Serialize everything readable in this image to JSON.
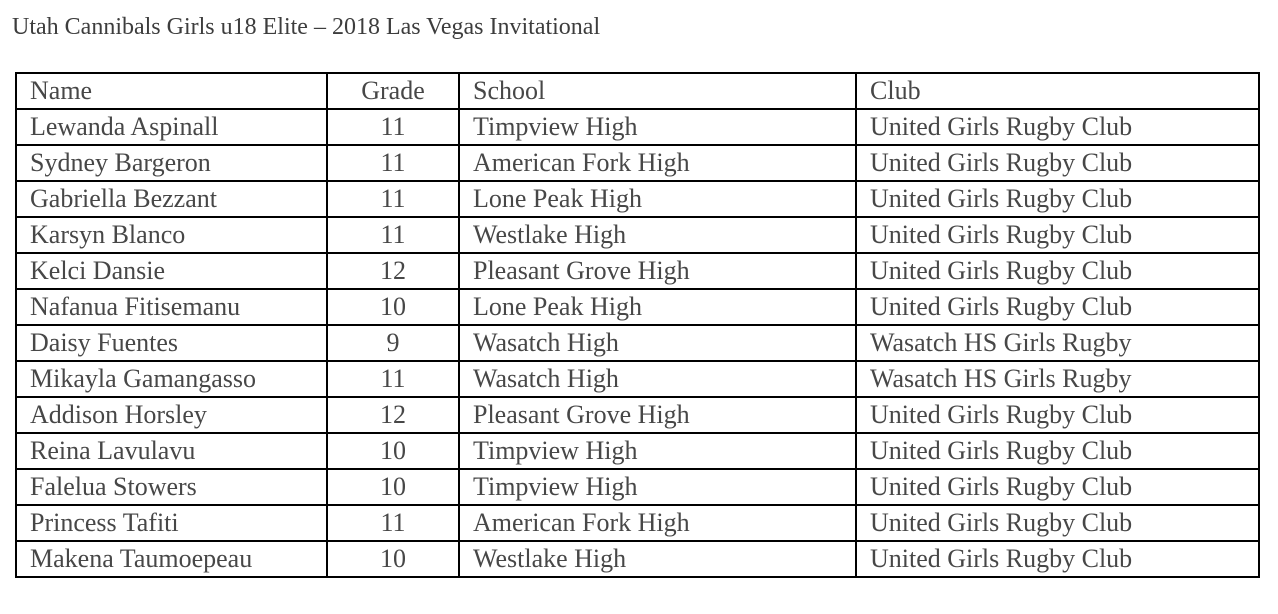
{
  "title": "Utah Cannibals Girls u18 Elite – 2018 Las Vegas Invitational",
  "table": {
    "headers": [
      "Name",
      "Grade",
      "School",
      "Club"
    ],
    "rows": [
      [
        "Lewanda Aspinall",
        "11",
        "Timpview High",
        "United Girls Rugby Club"
      ],
      [
        "Sydney Bargeron",
        "11",
        "American Fork High",
        "United Girls Rugby Club"
      ],
      [
        "Gabriella Bezzant",
        "11",
        "Lone Peak High",
        "United Girls Rugby Club"
      ],
      [
        "Karsyn Blanco",
        "11",
        "Westlake High",
        "United Girls Rugby Club"
      ],
      [
        "Kelci Dansie",
        "12",
        "Pleasant Grove High",
        "United Girls Rugby Club"
      ],
      [
        "Nafanua Fitisemanu",
        "10",
        "Lone Peak High",
        "United Girls Rugby Club"
      ],
      [
        "Daisy Fuentes",
        "9",
        "Wasatch High",
        "Wasatch HS Girls Rugby"
      ],
      [
        "Mikayla Gamangasso",
        "11",
        "Wasatch High",
        "Wasatch HS Girls Rugby"
      ],
      [
        "Addison Horsley",
        "12",
        "Pleasant Grove High",
        "United Girls Rugby Club"
      ],
      [
        "Reina Lavulavu",
        "10",
        "Timpview High",
        "United Girls Rugby Club"
      ],
      [
        "Falelua Stowers",
        "10",
        "Timpview High",
        "United Girls Rugby Club"
      ],
      [
        "Princess Tafiti",
        "11",
        "American Fork High",
        "United Girls Rugby Club"
      ],
      [
        "Makena Taumoepeau",
        "10",
        "Westlake High",
        "United Girls Rugby Club"
      ]
    ]
  }
}
